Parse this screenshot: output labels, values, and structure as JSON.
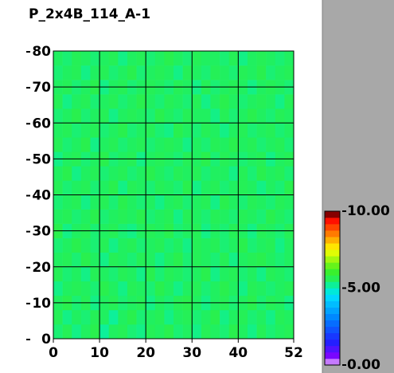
{
  "chart_data": {
    "type": "heatmap",
    "title": "P_2x4B_114_A-1",
    "xlim": [
      0,
      52
    ],
    "ylim": [
      0,
      80
    ],
    "xticks": [
      0,
      10,
      20,
      30,
      40,
      52
    ],
    "yticks": [
      0,
      10,
      20,
      30,
      40,
      50,
      60,
      70,
      80
    ],
    "grid": true,
    "zlim": [
      0,
      10
    ],
    "zticks": [
      {
        "value": 0,
        "label": "0.00"
      },
      {
        "value": 5,
        "label": "5.00"
      },
      {
        "value": 10,
        "label": "10.00"
      }
    ],
    "colorscale": [
      [
        0,
        "#ffffff"
      ],
      [
        0.4,
        "#9000ff"
      ],
      [
        1.5,
        "#2020ff"
      ],
      [
        3,
        "#0080ff"
      ],
      [
        4.5,
        "#00e0ff"
      ],
      [
        5,
        "#00f0c0"
      ],
      [
        5.5,
        "#20f060"
      ],
      [
        6.2,
        "#40f020"
      ],
      [
        7.5,
        "#ffff00"
      ],
      [
        8.5,
        "#ff8000"
      ],
      [
        9.5,
        "#ff0000"
      ],
      [
        10,
        "#300000"
      ]
    ],
    "z": [
      [
        5.4,
        5.6,
        5.3,
        5.5,
        5.7,
        5.2,
        5.5,
        5.6,
        5.4,
        5.3,
        5.6,
        5.5,
        5.7,
        5.4,
        5.5,
        5.3,
        5.6,
        5.5,
        5.4,
        5.7,
        5.5,
        5.3,
        5.6,
        5.4,
        5.5,
        5.6
      ],
      [
        5.6,
        5.3,
        5.5,
        5.4,
        5.6,
        5.5,
        5.2,
        5.5,
        5.7,
        5.4,
        5.5,
        5.6,
        5.3,
        5.5,
        5.6,
        5.4,
        5.5,
        5.7,
        5.3,
        5.5,
        5.6,
        5.4,
        5.5,
        5.3,
        5.6,
        5.5
      ],
      [
        5.5,
        5.7,
        5.4,
        5.6,
        5.3,
        5.5,
        5.6,
        5.4,
        5.5,
        5.6,
        5.3,
        5.5,
        5.4,
        5.6,
        5.7,
        5.5,
        5.3,
        5.5,
        5.6,
        5.4,
        5.5,
        5.7,
        5.4,
        5.6,
        5.5,
        5.3
      ],
      [
        5.3,
        5.5,
        5.6,
        5.5,
        5.4,
        5.7,
        5.5,
        5.3,
        5.6,
        5.5,
        5.4,
        5.7,
        5.5,
        5.3,
        5.5,
        5.6,
        5.4,
        5.5,
        5.7,
        5.5,
        5.3,
        5.6,
        5.5,
        5.4,
        5.5,
        5.6
      ],
      [
        5.6,
        5.4,
        5.5,
        5.3,
        5.6,
        5.5,
        5.4,
        5.6,
        5.5,
        5.3,
        5.7,
        5.4,
        5.6,
        5.5,
        5.4,
        5.5,
        5.7,
        5.3,
        5.5,
        5.6,
        5.4,
        5.5,
        5.3,
        5.6,
        5.5,
        5.4
      ],
      [
        5.5,
        5.6,
        5.4,
        5.7,
        5.5,
        5.3,
        5.6,
        5.5,
        5.4,
        5.6,
        5.5,
        5.3,
        5.5,
        5.7,
        5.4,
        5.6,
        5.5,
        5.4,
        5.6,
        5.3,
        5.5,
        5.6,
        5.7,
        5.5,
        5.4,
        5.5
      ],
      [
        5.4,
        5.5,
        5.7,
        5.5,
        5.4,
        5.6,
        5.3,
        5.5,
        5.6,
        5.4,
        5.5,
        5.6,
        5.4,
        5.5,
        5.3,
        5.6,
        5.5,
        5.6,
        5.4,
        5.5,
        5.7,
        5.4,
        5.5,
        5.6,
        5.3,
        5.5
      ],
      [
        5.7,
        5.3,
        5.5,
        5.6,
        5.4,
        5.5,
        5.6,
        5.4,
        5.3,
        5.5,
        5.6,
        5.5,
        5.7,
        5.4,
        5.5,
        5.6,
        5.3,
        5.5,
        5.4,
        5.6,
        5.5,
        5.3,
        5.6,
        5.5,
        5.4,
        5.6
      ],
      [
        5.5,
        5.6,
        5.4,
        5.5,
        5.7,
        5.4,
        5.5,
        5.6,
        5.5,
        5.7,
        5.4,
        5.5,
        5.6,
        5.3,
        5.6,
        5.5,
        5.4,
        5.6,
        5.5,
        5.4,
        5.6,
        5.5,
        5.4,
        5.7,
        5.5,
        5.4
      ],
      [
        5.4,
        5.5,
        5.6,
        5.3,
        5.5,
        5.6,
        5.4,
        5.7,
        5.5,
        5.4,
        5.5,
        5.3,
        5.5,
        5.6,
        5.4,
        5.5,
        5.6,
        5.3,
        5.7,
        5.5,
        5.4,
        5.6,
        5.5,
        5.4,
        5.6,
        5.5
      ],
      [
        5.6,
        5.4,
        5.5,
        5.6,
        5.4,
        5.5,
        5.7,
        5.3,
        5.6,
        5.5,
        5.4,
        5.6,
        5.5,
        5.4,
        5.7,
        5.3,
        5.5,
        5.6,
        5.4,
        5.5,
        5.6,
        5.5,
        5.3,
        5.5,
        5.4,
        5.7
      ],
      [
        5.5,
        5.7,
        5.3,
        5.5,
        5.6,
        5.4,
        5.5,
        5.6,
        5.4,
        5.5,
        5.7,
        5.5,
        5.4,
        5.6,
        5.5,
        5.6,
        5.4,
        5.5,
        5.5,
        5.3,
        5.6,
        5.4,
        5.7,
        5.5,
        5.6,
        5.4
      ],
      [
        5.3,
        5.5,
        5.6,
        5.4,
        5.5,
        5.7,
        5.4,
        5.5,
        5.6,
        5.3,
        5.5,
        5.6,
        5.5,
        5.4,
        5.6,
        5.5,
        5.7,
        5.4,
        5.6,
        5.5,
        5.4,
        5.5,
        5.6,
        5.3,
        5.5,
        5.6
      ],
      [
        5.6,
        5.4,
        5.5,
        5.7,
        5.3,
        5.5,
        5.6,
        5.4,
        5.5,
        5.6,
        5.4,
        5.5,
        5.6,
        5.5,
        5.3,
        5.5,
        5.4,
        5.6,
        5.5,
        5.7,
        5.5,
        5.6,
        5.4,
        5.5,
        5.6,
        5.4
      ],
      [
        5.5,
        5.6,
        5.4,
        5.5,
        5.6,
        5.4,
        5.5,
        5.7,
        5.4,
        5.5,
        5.6,
        5.4,
        5.3,
        5.7,
        5.5,
        5.4,
        5.6,
        5.5,
        5.3,
        5.5,
        5.6,
        5.4,
        5.5,
        5.6,
        5.4,
        5.5
      ],
      [
        5.4,
        5.5,
        5.7,
        5.4,
        5.5,
        5.6,
        5.3,
        5.5,
        5.6,
        5.5,
        5.4,
        5.7,
        5.5,
        5.4,
        5.6,
        5.5,
        5.5,
        5.3,
        5.6,
        5.4,
        5.5,
        5.7,
        5.5,
        5.4,
        5.6,
        5.5
      ],
      [
        5.6,
        5.3,
        5.5,
        5.6,
        5.4,
        5.5,
        5.6,
        5.4,
        5.5,
        5.7,
        5.5,
        5.4,
        5.6,
        5.5,
        5.4,
        5.6,
        5.3,
        5.5,
        5.7,
        5.5,
        5.4,
        5.5,
        5.6,
        5.5,
        5.3,
        5.6
      ],
      [
        5.5,
        5.6,
        5.4,
        5.5,
        5.7,
        5.3,
        5.5,
        5.6,
        5.4,
        5.5,
        5.6,
        5.5,
        5.4,
        5.6,
        5.5,
        5.3,
        5.6,
        5.4,
        5.5,
        5.6,
        5.5,
        5.3,
        5.5,
        5.6,
        5.5,
        5.4
      ],
      [
        5.4,
        5.5,
        5.6,
        5.3,
        5.5,
        5.6,
        5.4,
        5.5,
        5.7,
        5.4,
        5.5,
        5.6,
        5.5,
        5.3,
        5.6,
        5.5,
        5.4,
        5.6,
        5.5,
        5.4,
        5.6,
        5.5,
        5.7,
        5.4,
        5.5,
        5.6
      ],
      [
        5.5,
        5.4,
        5.6,
        5.5,
        5.4,
        5.5,
        5.6,
        5.3,
        5.5,
        5.6,
        5.4,
        5.5,
        5.7,
        5.5,
        5.4,
        5.6,
        5.5,
        5.5,
        5.4,
        5.6,
        5.3,
        5.5,
        5.6,
        5.5,
        5.4,
        5.5
      ]
    ]
  }
}
